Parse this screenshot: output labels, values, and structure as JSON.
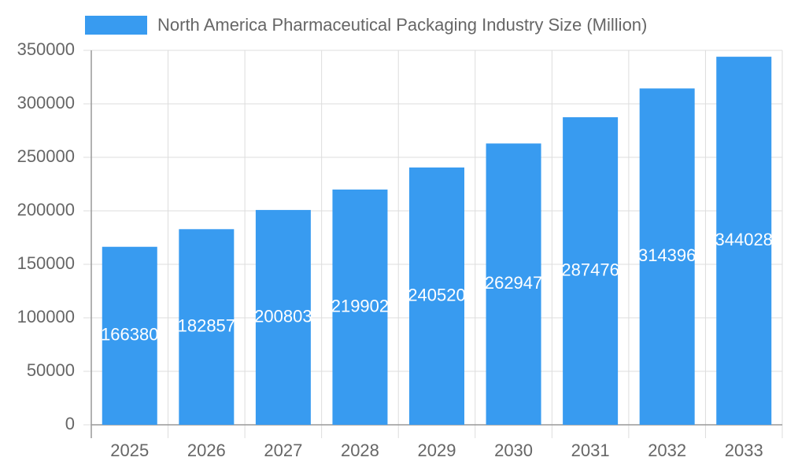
{
  "chart_data": {
    "type": "bar",
    "categories": [
      "2025",
      "2026",
      "2027",
      "2028",
      "2029",
      "2030",
      "2031",
      "2032",
      "2033"
    ],
    "series": [
      {
        "name": "North America Pharmaceutical Packaging Industry Size (Million)",
        "color": "#389bf0",
        "values": [
          166380,
          182857,
          200803,
          219902,
          240520,
          262947,
          287476,
          314396,
          344028
        ]
      }
    ],
    "ylim": [
      0,
      350000
    ],
    "yticks": [
      0,
      50000,
      100000,
      150000,
      200000,
      250000,
      300000,
      350000
    ],
    "grid": true,
    "data_labels": true
  }
}
